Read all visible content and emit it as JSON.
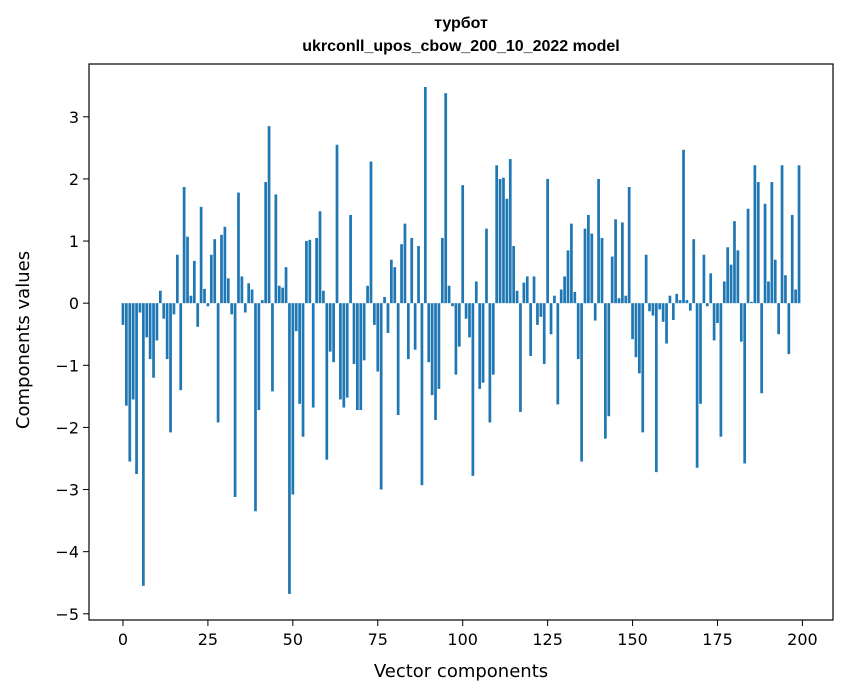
{
  "chart_data": {
    "type": "bar",
    "title": "турбот",
    "subtitle": "ukrconll_upos_cbow_200_10_2022 model",
    "xlabel": "Vector components",
    "ylabel": "Components values",
    "xlim": [
      -10,
      209
    ],
    "ylim": [
      -5.1,
      3.85
    ],
    "xticks": [
      0,
      25,
      50,
      75,
      100,
      125,
      150,
      175,
      200
    ],
    "yticks": [
      -5,
      -4,
      -3,
      -2,
      -1,
      0,
      1,
      2,
      3
    ],
    "grid": false,
    "bar_color": "#1f77b4",
    "series": [
      {
        "values": [
          -0.35,
          -1.65,
          -2.55,
          -1.55,
          -2.75,
          -0.15,
          -4.55,
          -0.55,
          -0.9,
          -1.2,
          -0.6,
          0.2,
          -0.25,
          -0.9,
          -2.08,
          -0.18,
          0.78,
          -1.4,
          1.87,
          1.07,
          0.12,
          0.68,
          -0.38,
          1.55,
          0.23,
          -0.05,
          0.78,
          1.03,
          -1.92,
          1.1,
          1.23,
          0.4,
          -0.18,
          -3.12,
          1.78,
          0.43,
          -0.15,
          0.32,
          0.22,
          -3.35,
          -1.72,
          0.05,
          1.95,
          2.85,
          -1.42,
          1.75,
          0.28,
          0.25,
          0.58,
          -4.68,
          -3.08,
          -0.45,
          -1.62,
          -2.15,
          1.0,
          1.02,
          -1.68,
          1.05,
          1.48,
          0.2,
          -2.52,
          -0.78,
          -0.95,
          2.55,
          -1.55,
          -1.68,
          -1.52,
          1.42,
          -0.98,
          -1.72,
          -1.72,
          -0.92,
          0.28,
          2.28,
          -0.35,
          -1.1,
          -3.0,
          0.1,
          -0.48,
          0.7,
          0.58,
          -1.8,
          0.95,
          1.28,
          -0.9,
          1.05,
          -0.75,
          0.92,
          -2.93,
          3.48,
          -0.95,
          -1.48,
          -1.88,
          -1.38,
          1.05,
          3.38,
          0.28,
          -0.05,
          -1.15,
          -0.7,
          1.9,
          -0.25,
          -0.55,
          -2.78,
          0.35,
          -1.38,
          -1.28,
          1.2,
          -1.92,
          -1.15,
          2.22,
          2.0,
          2.02,
          1.68,
          2.32,
          0.92,
          0.2,
          -1.75,
          0.33,
          0.43,
          -0.85,
          0.43,
          -0.35,
          -0.22,
          -0.98,
          2.0,
          -0.5,
          0.12,
          -1.63,
          0.22,
          0.43,
          0.85,
          1.28,
          0.18,
          -0.9,
          -2.55,
          1.2,
          1.42,
          1.12,
          -0.28,
          2.0,
          1.05,
          -2.18,
          -1.82,
          0.75,
          1.35,
          0.08,
          1.3,
          0.12,
          1.87,
          -0.58,
          -0.87,
          -1.13,
          -2.08,
          0.78,
          -0.13,
          -0.2,
          -2.72,
          -0.1,
          -0.3,
          -0.65,
          0.12,
          -0.27,
          0.15,
          0.05,
          2.47,
          0.05,
          -0.12,
          1.03,
          -2.65,
          -1.62,
          0.78,
          -0.05,
          0.48,
          -0.6,
          -0.32,
          -2.15,
          0.35,
          0.9,
          0.62,
          1.32,
          0.85,
          -0.62,
          -2.58,
          1.52,
          0.02,
          2.22,
          1.95,
          -1.45,
          1.6,
          0.35,
          1.95,
          0.7,
          -0.5,
          2.22,
          0.45,
          -0.82,
          1.42,
          0.22,
          2.22
        ]
      }
    ]
  }
}
